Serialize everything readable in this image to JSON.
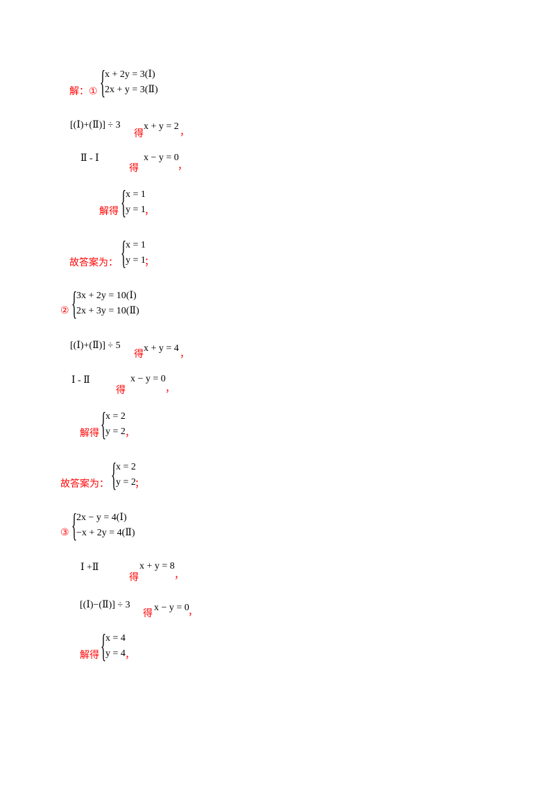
{
  "blocks": [
    {
      "label": "解：①",
      "sys": [
        "x + 2y = 3(Ⅰ)",
        "2x + y = 3(Ⅱ)"
      ]
    },
    {
      "op": "[(Ⅰ)+(Ⅱ)] ÷ 3",
      "de": "得",
      "res": "x + y = 2",
      "punct": "，"
    },
    {
      "op": "Ⅱ - Ⅰ",
      "de": "得",
      "res": "x − y = 0",
      "punct": "，"
    },
    {
      "label": "解得",
      "sys": [
        "x = 1",
        "y = 1"
      ],
      "punct": "，"
    },
    {
      "label": "故答案为：",
      "sys": [
        "x = 1",
        "y = 1"
      ],
      "punct": "；"
    },
    {
      "label": "②",
      "sys": [
        "3x + 2y = 10(Ⅰ)",
        "2x + 3y = 10(Ⅱ)"
      ]
    },
    {
      "op": "[(Ⅰ)+(Ⅱ)] ÷ 5",
      "de": "得",
      "res": "x + y = 4",
      "punct": "，"
    },
    {
      "op": "Ⅰ - Ⅱ",
      "de": "得",
      "res": "x − y = 0",
      "punct": "，"
    },
    {
      "label": "解得",
      "sys": [
        "x = 2",
        "y = 2"
      ],
      "punct": "，"
    },
    {
      "label": "故答案为：",
      "sys": [
        "x = 2",
        "y = 2"
      ],
      "punct": "；"
    },
    {
      "label": "③",
      "sys": [
        "2x − y = 4(Ⅰ)",
        "−x + 2y = 4(Ⅱ)"
      ]
    },
    {
      "op": "Ⅰ +Ⅱ",
      "de": "得",
      "res": "x + y = 8",
      "punct": "，"
    },
    {
      "op": "[(Ⅰ)−(Ⅱ)] ÷ 3",
      "de": "得",
      "res": "x − y = 0",
      "punct": "，"
    },
    {
      "label": "解得",
      "sys": [
        "x = 4",
        "y = 4"
      ],
      "punct": "，"
    }
  ]
}
